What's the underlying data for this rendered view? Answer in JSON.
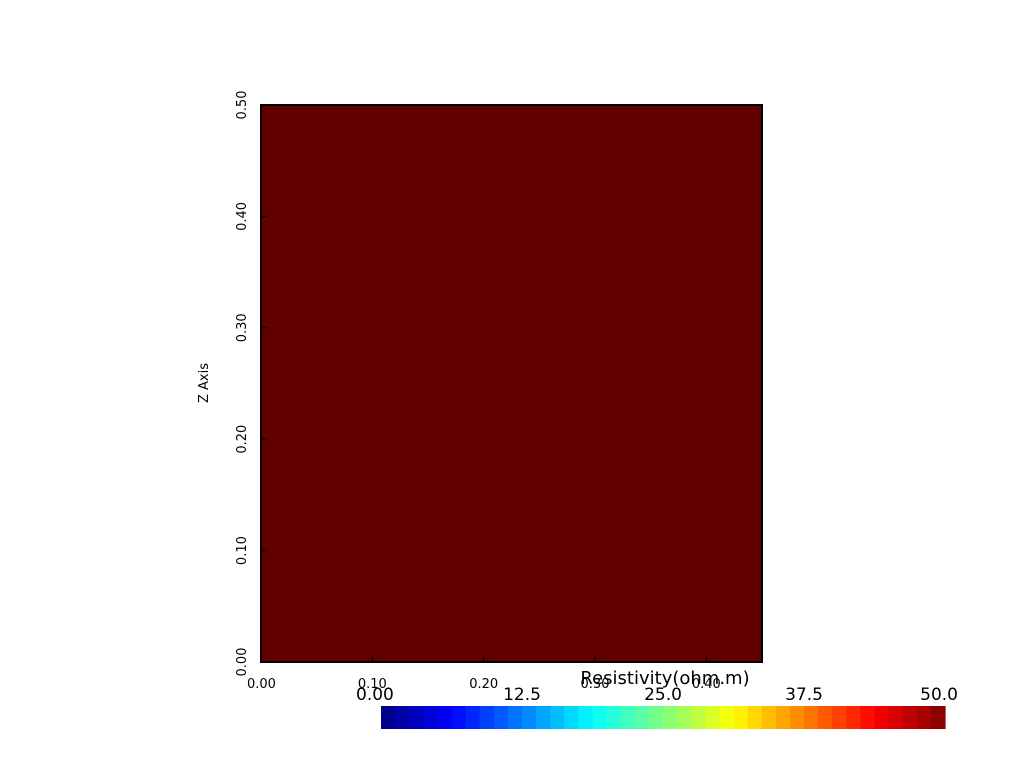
{
  "chart_data": {
    "type": "heatmap",
    "title": "",
    "xlabel": "",
    "ylabel": "Z Axis",
    "xlim": [
      0,
      0.45
    ],
    "ylim": [
      0,
      0.5
    ],
    "x_ticks": [
      "0.00",
      "0.10",
      "0.20",
      "0.30",
      "0.40"
    ],
    "x_tick_values": [
      0,
      0.1,
      0.2,
      0.3,
      0.4
    ],
    "y_ticks": [
      "0.00",
      "0.10",
      "0.20",
      "0.30",
      "0.40",
      "0.50"
    ],
    "y_tick_values": [
      0,
      0.1,
      0.2,
      0.3,
      0.4,
      0.5
    ],
    "field_value": 50.0,
    "field_color": "#620000",
    "colorbar": {
      "title": "Resistivity(ohm.m)",
      "range": [
        0,
        50
      ],
      "tick_labels": [
        "0.00",
        "12.5",
        "25.0",
        "37.5",
        "50.0"
      ],
      "tick_values": [
        0,
        12.5,
        25.0,
        37.5,
        50.0
      ],
      "colormap": "jet",
      "levels": 40
    }
  }
}
